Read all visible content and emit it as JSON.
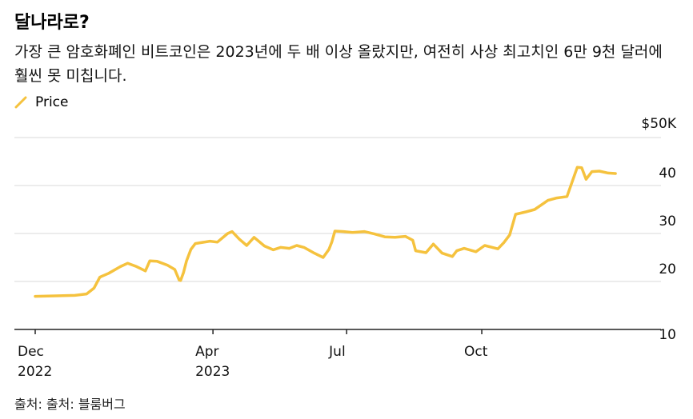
{
  "header": {
    "title": "달나라로?",
    "subtitle": "가장 큰 암호화폐인 비트코인은 2023년에 두 배 이상 올랐지만, 여전히 사상 최고치인 6만 9천 달러에 훨씬 못 미칩니다."
  },
  "legend": {
    "label": "Price",
    "color": "#f5c23e"
  },
  "source": "출처: 출처: 블룸버그",
  "chart_data": {
    "type": "line",
    "title": "달나라로?",
    "subtitle": "가장 큰 암호화폐인 비트코인은 2023년에 두 배 이상 올랐지만, 여전히 사상 최고치인 6만 9천 달러에 훨씬 못 미칩니다.",
    "xlabel": "",
    "ylabel": "",
    "ylim": [
      10,
      50
    ],
    "xlim": [
      "2022-12-01",
      "2024-01-31"
    ],
    "y_ticks": [
      {
        "value": 50,
        "label": "$50K"
      },
      {
        "value": 40,
        "label": "40"
      },
      {
        "value": 30,
        "label": "30"
      },
      {
        "value": 20,
        "label": "20"
      },
      {
        "value": 10,
        "label": "10"
      }
    ],
    "x_ticks": [
      {
        "date": "2022-12-01",
        "line1": "Dec",
        "line2": "2022"
      },
      {
        "date": "2023-04-01",
        "line1": "Apr",
        "line2": "2023"
      },
      {
        "date": "2023-07-01",
        "line1": "Jul",
        "line2": ""
      },
      {
        "date": "2023-10-01",
        "line1": "Oct",
        "line2": ""
      }
    ],
    "grid": true,
    "legend_position": "top-left",
    "series": [
      {
        "name": "Price",
        "color": "#f5c23e",
        "x": [
          "2022-12-01",
          "2022-12-15",
          "2022-12-28",
          "2023-01-05",
          "2023-01-10",
          "2023-01-14",
          "2023-01-20",
          "2023-01-28",
          "2023-02-02",
          "2023-02-08",
          "2023-02-14",
          "2023-02-17",
          "2023-02-22",
          "2023-03-01",
          "2023-03-06",
          "2023-03-09",
          "2023-03-10",
          "2023-03-12",
          "2023-03-14",
          "2023-03-17",
          "2023-03-20",
          "2023-03-24",
          "2023-03-30",
          "2023-04-04",
          "2023-04-11",
          "2023-04-14",
          "2023-04-19",
          "2023-04-24",
          "2023-04-29",
          "2023-05-06",
          "2023-05-12",
          "2023-05-17",
          "2023-05-23",
          "2023-05-28",
          "2023-06-02",
          "2023-06-09",
          "2023-06-15",
          "2023-06-19",
          "2023-06-21",
          "2023-06-23",
          "2023-06-29",
          "2023-07-05",
          "2023-07-13",
          "2023-07-20",
          "2023-07-27",
          "2023-08-03",
          "2023-08-10",
          "2023-08-15",
          "2023-08-17",
          "2023-08-24",
          "2023-08-29",
          "2023-09-04",
          "2023-09-11",
          "2023-09-14",
          "2023-09-19",
          "2023-09-27",
          "2023-10-03",
          "2023-10-12",
          "2023-10-16",
          "2023-10-20",
          "2023-10-24",
          "2023-10-31",
          "2023-11-06",
          "2023-11-15",
          "2023-11-21",
          "2023-11-28",
          "2023-12-05",
          "2023-12-08",
          "2023-12-11",
          "2023-12-15",
          "2023-12-20",
          "2023-12-26",
          "2023-12-31"
        ],
        "values": [
          16.9,
          17.0,
          17.1,
          17.4,
          18.6,
          20.9,
          21.7,
          23.1,
          23.8,
          23.1,
          22.2,
          24.3,
          24.2,
          23.4,
          22.5,
          20.3,
          20.2,
          21.9,
          24.3,
          26.7,
          27.9,
          28.1,
          28.4,
          28.2,
          30.0,
          30.4,
          28.8,
          27.5,
          29.2,
          27.4,
          26.6,
          27.1,
          26.9,
          27.5,
          27.1,
          25.9,
          25.0,
          26.7,
          28.3,
          30.5,
          30.4,
          30.2,
          30.4,
          29.9,
          29.3,
          29.2,
          29.4,
          28.6,
          26.4,
          26.0,
          27.8,
          25.9,
          25.2,
          26.4,
          26.9,
          26.2,
          27.5,
          26.8,
          28.1,
          29.7,
          34.0,
          34.5,
          35.0,
          36.9,
          37.4,
          37.7,
          43.8,
          43.7,
          41.3,
          42.9,
          43.0,
          42.6,
          42.5
        ]
      }
    ]
  }
}
